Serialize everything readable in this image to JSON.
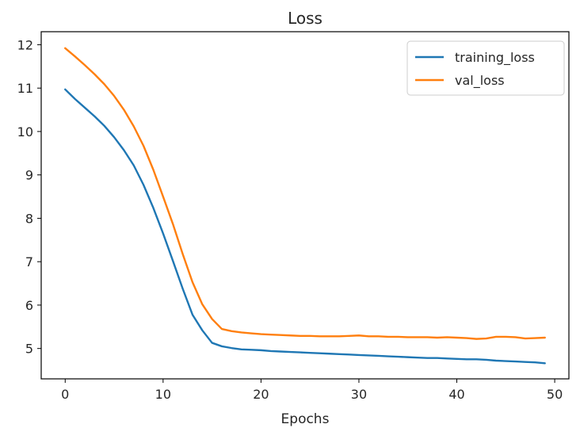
{
  "chart_data": {
    "type": "line",
    "title": "Loss",
    "xlabel": "Epochs",
    "ylabel": "",
    "xlim": [
      -2.45,
      51.45
    ],
    "ylim": [
      4.3,
      12.3
    ],
    "xticks": [
      0,
      10,
      20,
      30,
      40,
      50
    ],
    "yticks": [
      5,
      6,
      7,
      8,
      9,
      10,
      11,
      12
    ],
    "grid": false,
    "legend": "top-right",
    "x": [
      0,
      1,
      2,
      3,
      4,
      5,
      6,
      7,
      8,
      9,
      10,
      11,
      12,
      13,
      14,
      15,
      16,
      17,
      18,
      19,
      20,
      21,
      22,
      23,
      24,
      25,
      26,
      27,
      28,
      29,
      30,
      31,
      32,
      33,
      34,
      35,
      36,
      37,
      38,
      39,
      40,
      41,
      42,
      43,
      44,
      45,
      46,
      47,
      48,
      49
    ],
    "series": [
      {
        "name": "training_loss",
        "color": "#1f77b4",
        "values": [
          10.97,
          10.75,
          10.55,
          10.35,
          10.13,
          9.87,
          9.57,
          9.22,
          8.77,
          8.24,
          7.65,
          7.02,
          6.38,
          5.78,
          5.42,
          5.13,
          5.05,
          5.01,
          4.98,
          4.97,
          4.96,
          4.94,
          4.93,
          4.92,
          4.91,
          4.9,
          4.89,
          4.88,
          4.87,
          4.86,
          4.85,
          4.84,
          4.83,
          4.82,
          4.81,
          4.8,
          4.79,
          4.78,
          4.78,
          4.77,
          4.76,
          4.75,
          4.75,
          4.74,
          4.72,
          4.71,
          4.7,
          4.69,
          4.68,
          4.66
        ]
      },
      {
        "name": "val_loss",
        "color": "#ff7f0e",
        "values": [
          11.92,
          11.73,
          11.53,
          11.32,
          11.09,
          10.82,
          10.5,
          10.12,
          9.67,
          9.12,
          8.5,
          7.87,
          7.18,
          6.53,
          6.02,
          5.68,
          5.45,
          5.4,
          5.37,
          5.35,
          5.33,
          5.32,
          5.31,
          5.3,
          5.29,
          5.29,
          5.28,
          5.28,
          5.28,
          5.29,
          5.3,
          5.28,
          5.28,
          5.27,
          5.27,
          5.26,
          5.26,
          5.26,
          5.25,
          5.26,
          5.25,
          5.24,
          5.22,
          5.23,
          5.27,
          5.27,
          5.26,
          5.23,
          5.24,
          5.25
        ]
      }
    ]
  }
}
